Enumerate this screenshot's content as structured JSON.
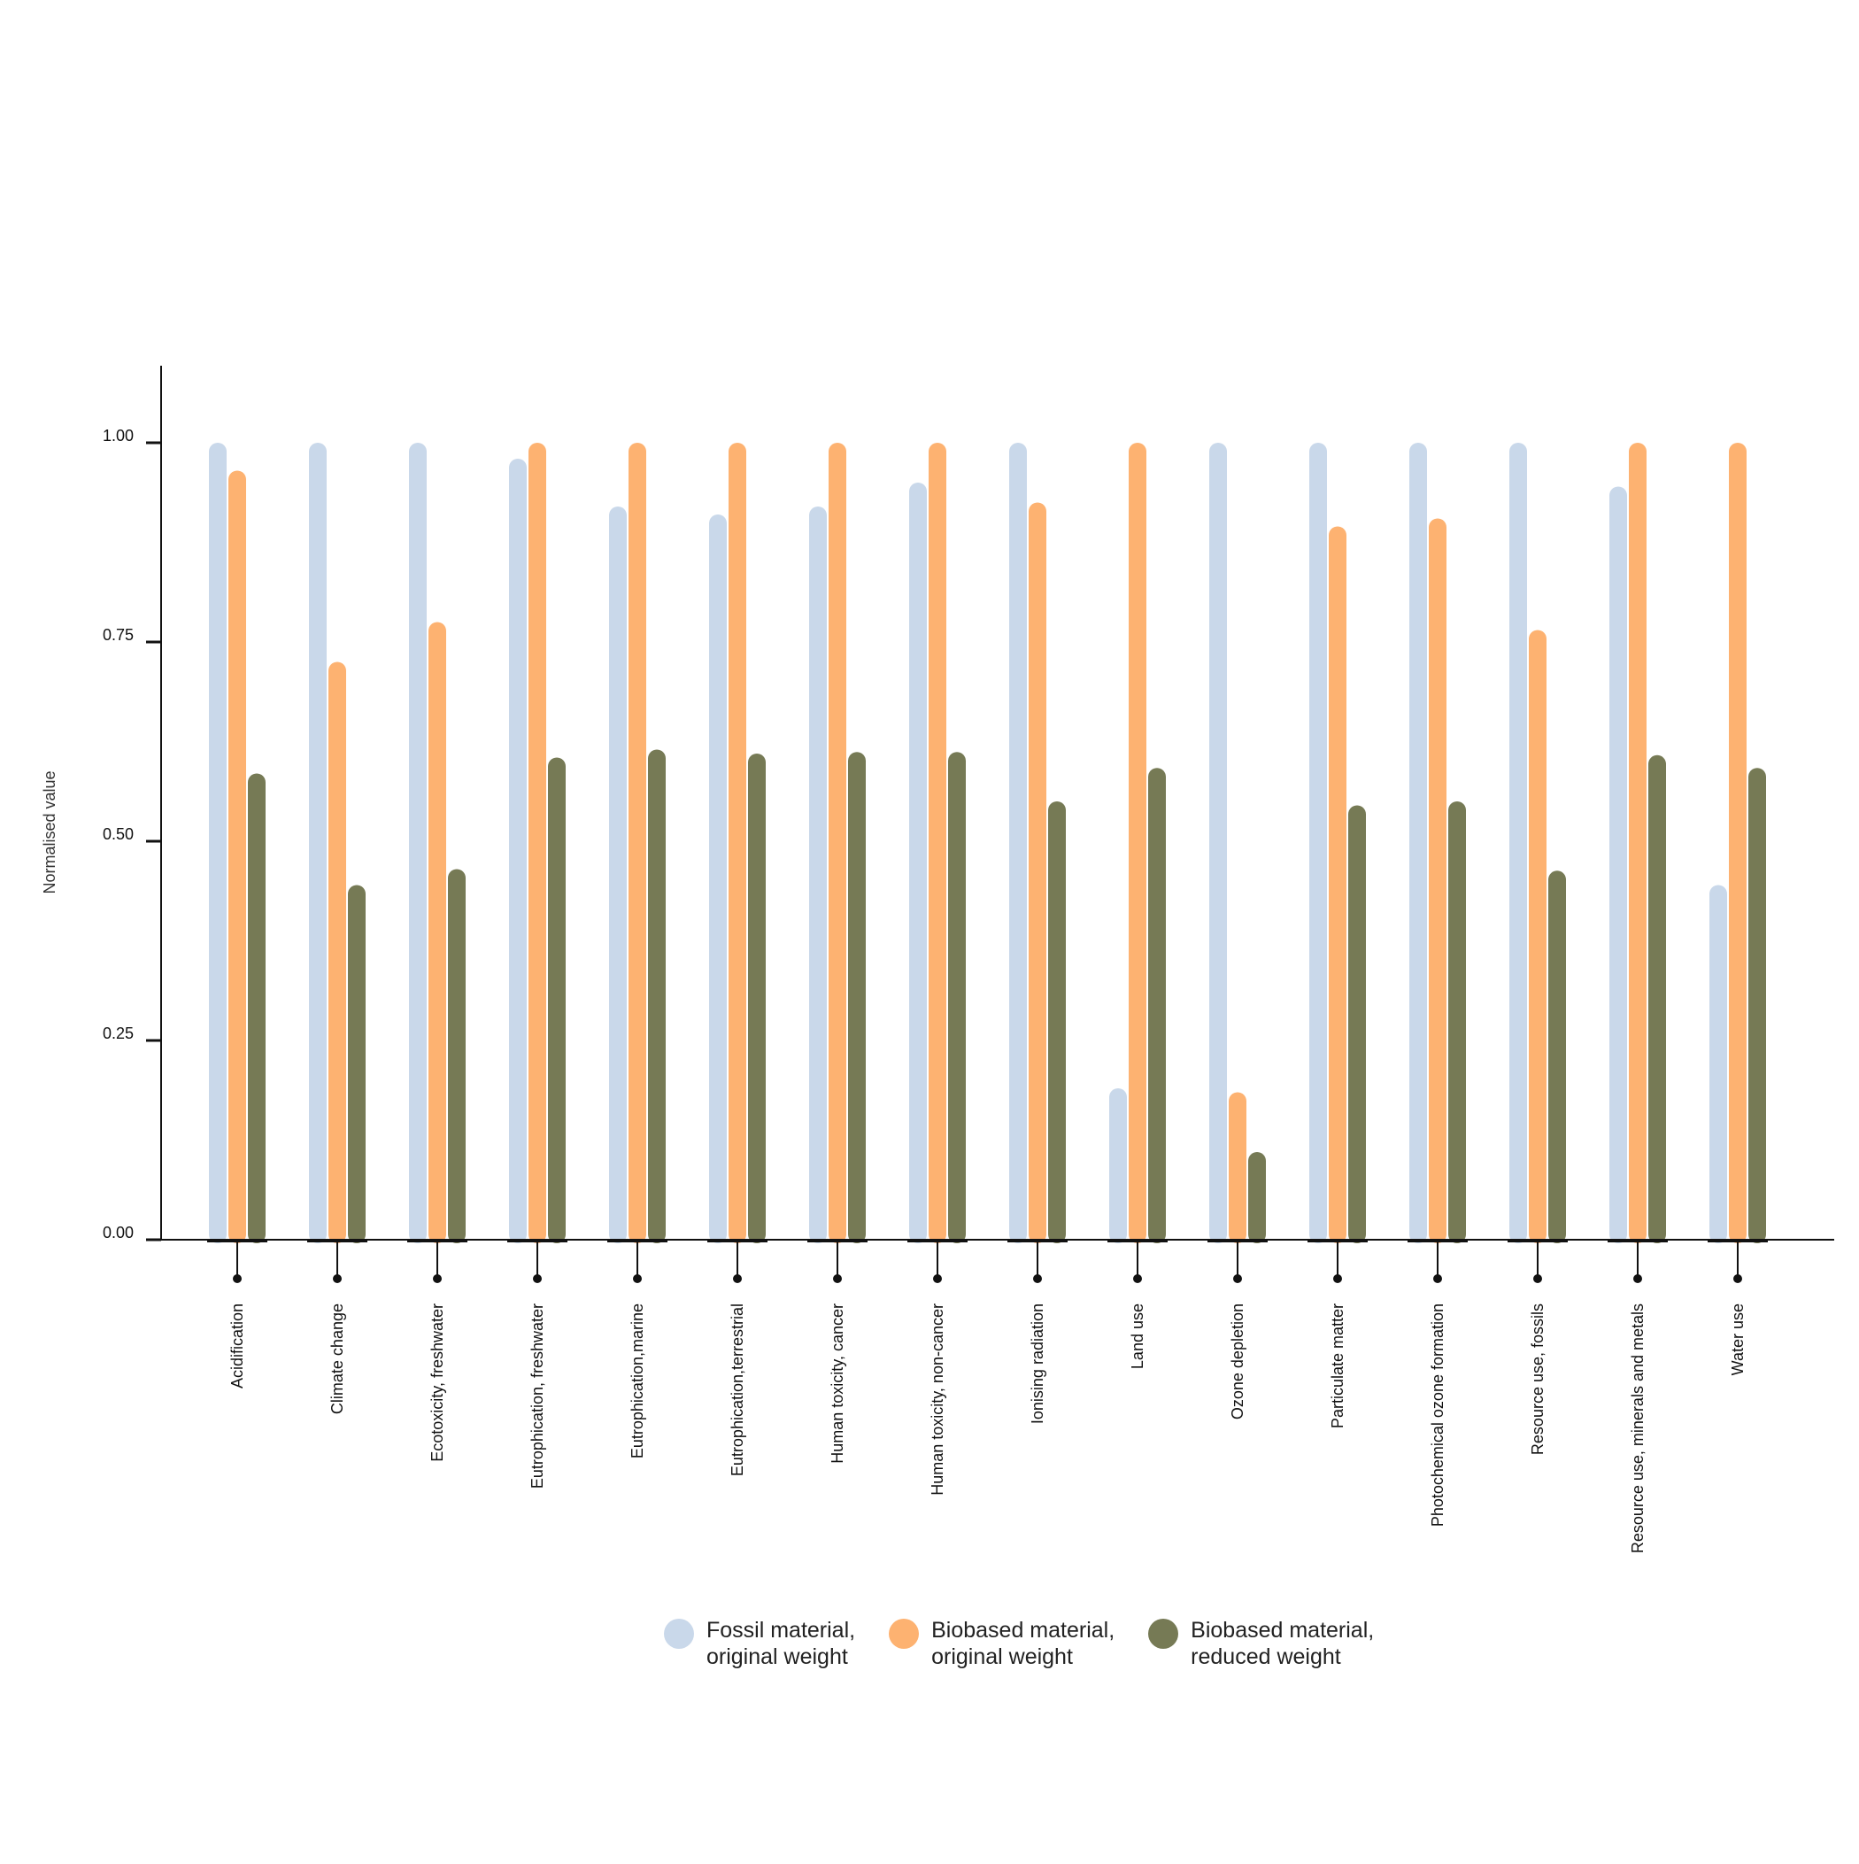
{
  "chart_data": {
    "type": "bar",
    "ylabel": "Normalised value",
    "ylim": [
      0,
      1.1
    ],
    "yticks": [
      "0.00",
      "0.25",
      "0.50",
      "0.75",
      "1.00"
    ],
    "grid": false,
    "legend_placement": "bottom-center",
    "categories": [
      "Acidification",
      "Climate change",
      "Ecotoxicity, freshwater",
      "Eutrophication, freshwater",
      "Eutrophication,marine",
      "Eutrophication,terrestrial",
      "Human toxicity, cancer",
      "Human toxicity, non-cancer",
      "Ionising radiation",
      "Land use",
      "Ozone depletion",
      "Particulate matter",
      "Photochemical ozone formation",
      "Resource use, fossils",
      "Resource use, minerals and metals",
      "Water use"
    ],
    "series": [
      {
        "name": "Fossil material,\noriginal weight",
        "color": "#c9d8ea",
        "values": [
          1.0,
          1.0,
          1.0,
          0.98,
          0.92,
          0.91,
          0.92,
          0.95,
          1.0,
          0.19,
          1.0,
          1.0,
          1.0,
          1.0,
          0.945,
          0.445
        ]
      },
      {
        "name": "Biobased material,\noriginal weight",
        "color": "#fdb271",
        "values": [
          0.965,
          0.725,
          0.775,
          1.0,
          1.0,
          1.0,
          1.0,
          1.0,
          0.925,
          1.0,
          0.185,
          0.895,
          0.905,
          0.765,
          1.0,
          1.0
        ]
      },
      {
        "name": "Biobased material,\nreduced weight",
        "color": "#767a55",
        "values": [
          0.585,
          0.445,
          0.465,
          0.605,
          0.615,
          0.61,
          0.612,
          0.612,
          0.55,
          0.592,
          0.11,
          0.545,
          0.55,
          0.463,
          0.608,
          0.592
        ]
      }
    ]
  }
}
